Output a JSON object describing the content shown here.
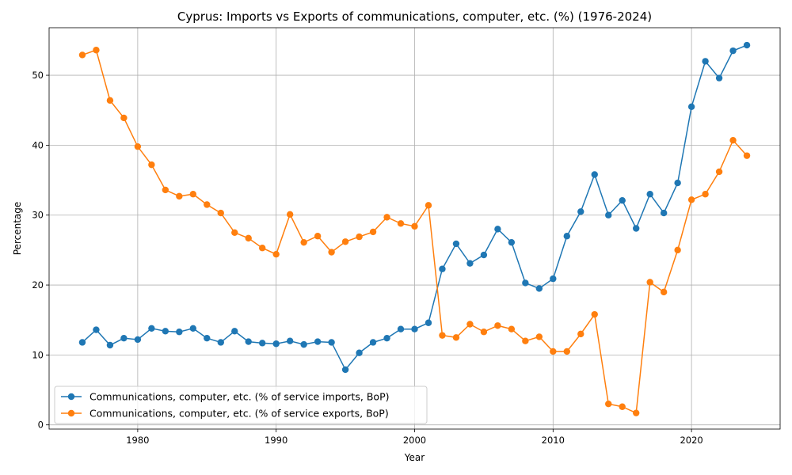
{
  "chart_data": {
    "type": "line",
    "title": "Cyprus: Imports vs Exports of communications, computer, etc. (%) (1976-2024)",
    "xlabel": "Year",
    "ylabel": "Percentage",
    "xlim": [
      1973.6,
      2026.4
    ],
    "ylim": [
      -0.6,
      56.8
    ],
    "xticks": [
      1980,
      1990,
      2000,
      2010,
      2020
    ],
    "yticks": [
      0,
      10,
      20,
      30,
      40,
      50
    ],
    "grid": true,
    "legend_position": "lower-left",
    "x": [
      1976,
      1977,
      1978,
      1979,
      1980,
      1981,
      1982,
      1983,
      1984,
      1985,
      1986,
      1987,
      1988,
      1989,
      1990,
      1991,
      1992,
      1993,
      1994,
      1995,
      1996,
      1997,
      1998,
      1999,
      2000,
      2001,
      2002,
      2003,
      2004,
      2005,
      2006,
      2007,
      2008,
      2009,
      2010,
      2011,
      2012,
      2013,
      2014,
      2015,
      2016,
      2017,
      2018,
      2019,
      2020,
      2021,
      2022,
      2023,
      2024
    ],
    "series": [
      {
        "name": "Communications, computer, etc. (% of service imports, BoP)",
        "color": "#1f77b4",
        "values": [
          11.8,
          13.6,
          11.4,
          12.4,
          12.2,
          13.8,
          13.4,
          13.3,
          13.8,
          12.4,
          11.8,
          13.4,
          11.9,
          11.7,
          11.6,
          12.0,
          11.5,
          11.9,
          11.8,
          7.9,
          10.3,
          11.8,
          12.4,
          13.7,
          13.7,
          14.6,
          22.3,
          25.9,
          23.1,
          24.3,
          28.0,
          26.1,
          20.3,
          19.5,
          20.9,
          27.0,
          30.5,
          35.8,
          30.0,
          32.1,
          28.1,
          33.0,
          30.3,
          34.6,
          45.5,
          52.0,
          49.6,
          53.5,
          54.3
        ]
      },
      {
        "name": "Communications, computer, etc. (% of service exports, BoP)",
        "color": "#ff7f0e",
        "values": [
          52.9,
          53.6,
          46.4,
          43.9,
          39.8,
          37.2,
          33.6,
          32.7,
          33.0,
          31.5,
          30.3,
          27.5,
          26.7,
          25.3,
          24.4,
          30.1,
          26.1,
          27.0,
          24.7,
          26.2,
          26.9,
          27.6,
          29.7,
          28.8,
          28.4,
          31.4,
          12.8,
          12.5,
          14.4,
          13.3,
          14.2,
          13.7,
          12.0,
          12.6,
          10.5,
          10.5,
          13.0,
          15.8,
          3.0,
          2.6,
          1.7,
          20.4,
          19.0,
          25.0,
          32.2,
          33.0,
          36.2,
          40.7,
          38.5
        ]
      }
    ]
  }
}
